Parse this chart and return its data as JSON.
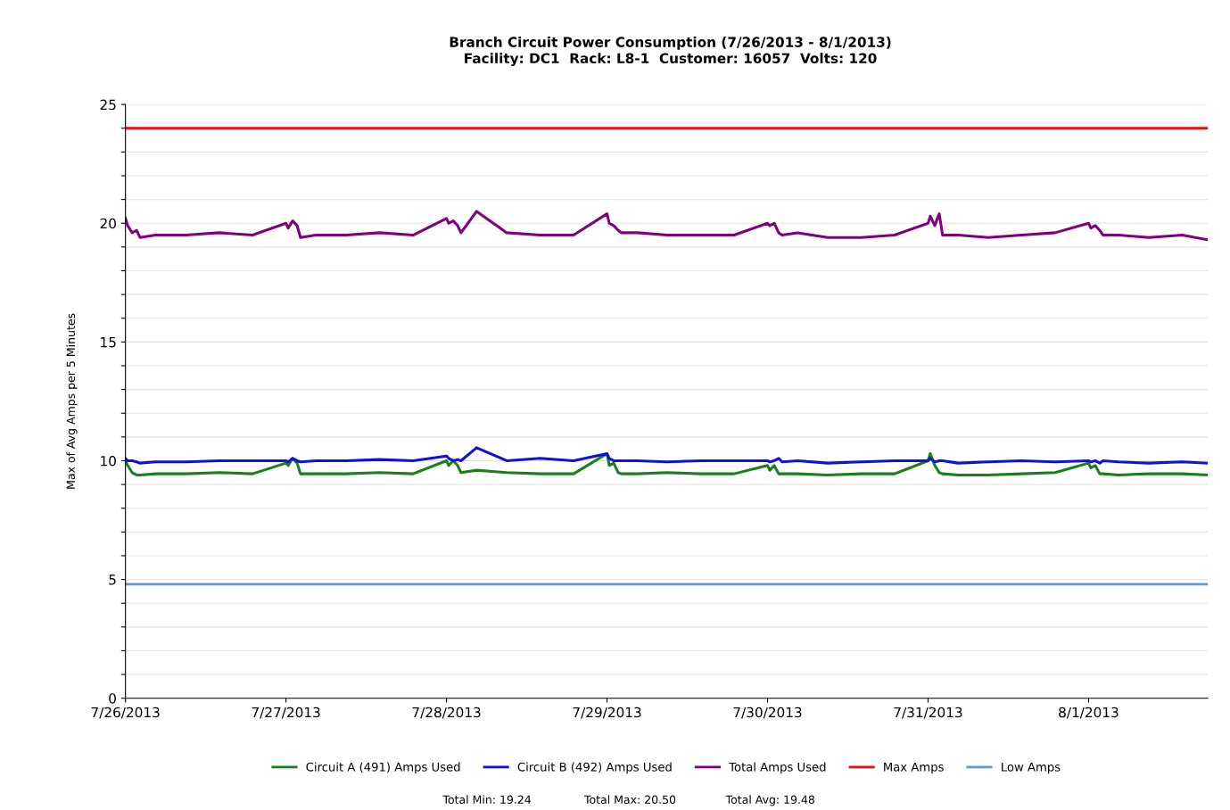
{
  "chart_data": {
    "type": "line",
    "title": "Branch Circuit Power Consumption (7/26/2013 - 8/1/2013)",
    "subtitle": "Facility: DC1  Rack: L8-1  Customer: 16057  Volts: 120",
    "ylabel": "Max of Avg Amps per 5 Minutes",
    "x": [
      "2013-07-26T00:00",
      "2013-07-26T00:20",
      "2013-07-26T01:00",
      "2013-07-26T01:40",
      "2013-07-26T02:10",
      "2013-07-26T04:30",
      "2013-07-26T09:00",
      "2013-07-26T14:00",
      "2013-07-26T19:00",
      "2013-07-27T00:00",
      "2013-07-27T00:20",
      "2013-07-27T01:00",
      "2013-07-27T01:40",
      "2013-07-27T02:10",
      "2013-07-27T04:30",
      "2013-07-27T09:00",
      "2013-07-27T14:00",
      "2013-07-27T19:00",
      "2013-07-28T00:00",
      "2013-07-28T00:20",
      "2013-07-28T01:00",
      "2013-07-28T01:40",
      "2013-07-28T02:10",
      "2013-07-28T04:30",
      "2013-07-28T09:00",
      "2013-07-28T14:00",
      "2013-07-28T19:00",
      "2013-07-29T00:00",
      "2013-07-29T00:20",
      "2013-07-29T01:00",
      "2013-07-29T01:40",
      "2013-07-29T02:10",
      "2013-07-29T04:30",
      "2013-07-29T09:00",
      "2013-07-29T14:00",
      "2013-07-29T19:00",
      "2013-07-30T00:00",
      "2013-07-30T00:20",
      "2013-07-30T01:00",
      "2013-07-30T01:40",
      "2013-07-30T02:10",
      "2013-07-30T04:30",
      "2013-07-30T09:00",
      "2013-07-30T14:00",
      "2013-07-30T19:00",
      "2013-07-31T00:00",
      "2013-07-31T00:20",
      "2013-07-31T01:00",
      "2013-07-31T01:40",
      "2013-07-31T02:10",
      "2013-07-31T04:30",
      "2013-07-31T09:00",
      "2013-07-31T14:00",
      "2013-07-31T19:00",
      "2013-08-01T00:00",
      "2013-08-01T00:20",
      "2013-08-01T01:00",
      "2013-08-01T01:40",
      "2013-08-01T02:10",
      "2013-08-01T04:30",
      "2013-08-01T09:00",
      "2013-08-01T14:00",
      "2013-08-01T17:50"
    ],
    "series": [
      {
        "name": "Circuit A (491) Amps Used",
        "color": "#1a7f1a",
        "values": [
          10.0,
          9.8,
          9.5,
          9.4,
          9.4,
          9.45,
          9.45,
          9.5,
          9.45,
          9.9,
          9.8,
          10.1,
          9.9,
          9.45,
          9.45,
          9.45,
          9.5,
          9.45,
          10.0,
          9.8,
          10.0,
          9.8,
          9.5,
          9.6,
          9.5,
          9.45,
          9.45,
          10.3,
          9.8,
          9.9,
          9.5,
          9.45,
          9.45,
          9.5,
          9.45,
          9.45,
          9.8,
          9.6,
          9.8,
          9.45,
          9.45,
          9.45,
          9.4,
          9.45,
          9.45,
          10.0,
          10.3,
          9.8,
          9.5,
          9.45,
          9.4,
          9.4,
          9.45,
          9.5,
          9.9,
          9.7,
          9.8,
          9.45,
          9.45,
          9.4,
          9.45,
          9.45,
          9.4
        ]
      },
      {
        "name": "Circuit B (492) Amps Used",
        "color": "#1010dd",
        "values": [
          10.1,
          10.0,
          10.0,
          9.95,
          9.9,
          9.95,
          9.95,
          10.0,
          10.0,
          10.0,
          9.95,
          10.1,
          10.0,
          9.95,
          10.0,
          10.0,
          10.05,
          10.0,
          10.2,
          10.1,
          10.0,
          10.05,
          10.0,
          10.55,
          10.0,
          10.1,
          10.0,
          10.3,
          10.1,
          10.0,
          10.0,
          10.0,
          10.0,
          9.95,
          10.0,
          10.0,
          10.0,
          9.95,
          10.0,
          10.1,
          9.95,
          10.0,
          9.9,
          9.95,
          10.0,
          10.0,
          10.1,
          9.95,
          10.0,
          10.0,
          9.9,
          9.95,
          10.0,
          9.95,
          10.0,
          9.95,
          10.0,
          9.9,
          10.0,
          9.95,
          9.9,
          9.95,
          9.9
        ]
      },
      {
        "name": "Total Amps Used",
        "color": "#800080",
        "values": [
          20.2,
          19.9,
          19.6,
          19.7,
          19.4,
          19.5,
          19.5,
          19.6,
          19.5,
          20.0,
          19.8,
          20.1,
          19.9,
          19.4,
          19.5,
          19.5,
          19.6,
          19.5,
          20.2,
          20.0,
          20.1,
          19.9,
          19.6,
          20.5,
          19.6,
          19.5,
          19.5,
          20.4,
          20.0,
          19.9,
          19.7,
          19.6,
          19.6,
          19.5,
          19.5,
          19.5,
          20.0,
          19.9,
          20.0,
          19.6,
          19.5,
          19.6,
          19.4,
          19.4,
          19.5,
          20.0,
          20.3,
          19.9,
          20.4,
          19.5,
          19.5,
          19.4,
          19.5,
          19.6,
          20.0,
          19.8,
          19.9,
          19.7,
          19.5,
          19.5,
          19.4,
          19.5,
          19.3
        ]
      }
    ],
    "ref_lines": [
      {
        "axis": "y",
        "value": 24,
        "label": "Max Amps",
        "color": "#e81010"
      },
      {
        "axis": "y",
        "value": 4.8,
        "label": "Low Amps",
        "color": "#5b9bd5"
      }
    ],
    "xlim": [
      "2013-07-26T00:00",
      "2013-08-01T17:50"
    ],
    "xticks": [
      {
        "value": "2013-07-26",
        "label": "7/26/2013"
      },
      {
        "value": "2013-07-27",
        "label": "7/27/2013"
      },
      {
        "value": "2013-07-28",
        "label": "7/28/2013"
      },
      {
        "value": "2013-07-29",
        "label": "7/29/2013"
      },
      {
        "value": "2013-07-30",
        "label": "7/30/2013"
      },
      {
        "value": "2013-07-31",
        "label": "7/31/2013"
      },
      {
        "value": "2013-08-01",
        "label": "8/1/2013"
      }
    ],
    "ylim": [
      0,
      25
    ],
    "yticks": [
      0,
      {
        "value": 1,
        "label": null
      },
      {
        "value": 2,
        "label": null
      },
      {
        "value": 3,
        "label": null
      },
      {
        "value": 4,
        "label": null
      },
      5,
      {
        "value": 6,
        "label": null
      },
      {
        "value": 7,
        "label": null
      },
      {
        "value": 8,
        "label": null
      },
      {
        "value": 9,
        "label": null
      },
      10,
      {
        "value": 11,
        "label": null
      },
      {
        "value": 12,
        "label": null
      },
      {
        "value": 13,
        "label": null
      },
      {
        "value": 14,
        "label": null
      },
      15,
      {
        "value": 16,
        "label": null
      },
      {
        "value": 17,
        "label": null
      },
      {
        "value": 18,
        "label": null
      },
      {
        "value": 19,
        "label": null
      },
      20,
      {
        "value": 21,
        "label": null
      },
      {
        "value": 22,
        "label": null
      },
      {
        "value": 23,
        "label": null
      },
      {
        "value": 24,
        "label": null
      },
      25
    ],
    "grid": "y",
    "legend": "bottom",
    "marker": "none",
    "line_style": "solid",
    "annotations": [
      "Total Min: 19.24",
      "Total Max: 20.50",
      "Total Avg: 19.48"
    ]
  }
}
